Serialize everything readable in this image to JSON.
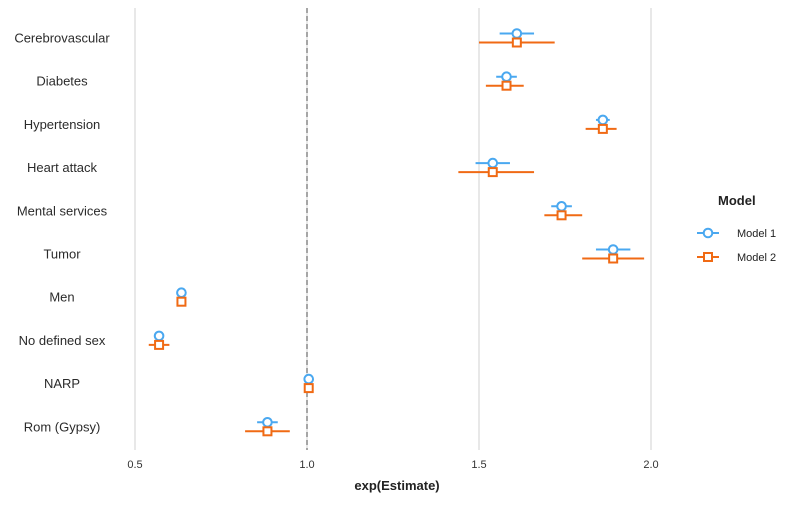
{
  "chart_data": {
    "type": "scatter",
    "subtype": "forest-plot",
    "title": "",
    "xlabel": "exp(Estimate)",
    "ylabel": "",
    "xlim": [
      0.5,
      2.0
    ],
    "x_ticks": [
      "0.5",
      "1.0",
      "1.5",
      "2.0"
    ],
    "reference_line": {
      "x": 1.0,
      "style": "dashed"
    },
    "grid": "vertical major",
    "categories": [
      "Cerebrovascular",
      "Diabetes",
      "Hypertension",
      "Heart attack",
      "Mental services",
      "Tumor",
      "Men",
      "No defined sex",
      "NARP",
      "Rom (Gypsy)"
    ],
    "legend": {
      "title": "Model",
      "position": "right"
    },
    "series": [
      {
        "name": "Model 1",
        "color": "#4aa8f0",
        "marker": "circle",
        "estimate": [
          1.61,
          1.58,
          1.86,
          1.54,
          1.74,
          1.89,
          0.635,
          0.57,
          1.005,
          0.885
        ],
        "lower": [
          1.56,
          1.55,
          1.84,
          1.49,
          1.71,
          1.84,
          0.633,
          0.56,
          1.0,
          0.855
        ],
        "upper": [
          1.66,
          1.61,
          1.88,
          1.59,
          1.77,
          1.94,
          0.637,
          0.58,
          1.01,
          0.915
        ]
      },
      {
        "name": "Model 2",
        "color": "#f06a14",
        "marker": "square",
        "estimate": [
          1.61,
          1.58,
          1.86,
          1.54,
          1.74,
          1.89,
          0.635,
          0.57,
          1.005,
          0.885
        ],
        "lower": [
          1.5,
          1.52,
          1.81,
          1.44,
          1.69,
          1.8,
          0.633,
          0.54,
          0.995,
          0.82
        ],
        "upper": [
          1.72,
          1.63,
          1.9,
          1.66,
          1.8,
          1.98,
          0.637,
          0.6,
          1.015,
          0.95
        ]
      }
    ]
  }
}
